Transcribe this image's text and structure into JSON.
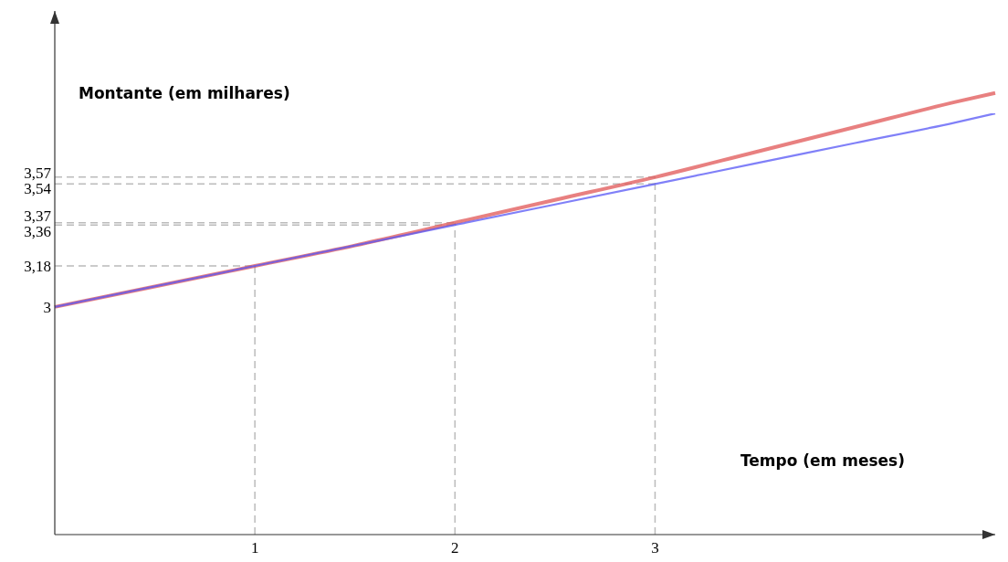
{
  "chart_data": {
    "type": "line",
    "xlabel": "Tempo (em meses)",
    "ylabel": "Montante (em milhares)",
    "x": [
      0,
      0.5,
      1,
      1.5,
      2,
      2.5,
      3,
      3.5,
      4,
      4.5,
      4.7
    ],
    "series": [
      {
        "color": "#e05555",
        "values": [
          3,
          3.09,
          3.18,
          3.27,
          3.37,
          3.47,
          3.57,
          3.68,
          3.79,
          3.9,
          3.94
        ]
      },
      {
        "color": "#5555f5",
        "values": [
          3,
          3.09,
          3.18,
          3.27,
          3.36,
          3.45,
          3.54,
          3.63,
          3.72,
          3.81,
          3.85
        ]
      }
    ],
    "xlim": [
      0,
      4.7
    ],
    "ylim": [
      2,
      4.3
    ],
    "xticks": [
      1,
      2,
      3
    ],
    "yticks": [
      {
        "value": 3,
        "label": "3"
      },
      {
        "value": 3.18,
        "label": "3,18"
      },
      {
        "value": 3.36,
        "label": "3,36"
      },
      {
        "value": 3.37,
        "label": "3,37"
      },
      {
        "value": 3.54,
        "label": "3,54"
      },
      {
        "value": 3.57,
        "label": "3,57"
      }
    ],
    "ref_lines": [
      {
        "axis": "x",
        "value": 1,
        "color": "#bbbbbb",
        "line_style": "dashed"
      },
      {
        "axis": "x",
        "value": 2,
        "color": "#bbbbbb",
        "line_style": "dashed"
      },
      {
        "axis": "x",
        "value": 3,
        "color": "#bbbbbb",
        "line_style": "dashed"
      },
      {
        "axis": "y",
        "value": 3.18,
        "color": "#bbbbbb",
        "line_style": "dashed"
      },
      {
        "axis": "y",
        "value": 3.36,
        "color": "#bbbbbb",
        "line_style": "dashed"
      },
      {
        "axis": "y",
        "value": 3.37,
        "color": "#bbbbbb",
        "line_style": "dashed"
      },
      {
        "axis": "y",
        "value": 3.54,
        "color": "#bbbbbb",
        "line_style": "dashed"
      },
      {
        "axis": "y",
        "value": 3.57,
        "color": "#bbbbbb",
        "line_style": "dashed"
      }
    ],
    "grid": false,
    "legend": false,
    "marker": "none",
    "line_style": "solid"
  }
}
